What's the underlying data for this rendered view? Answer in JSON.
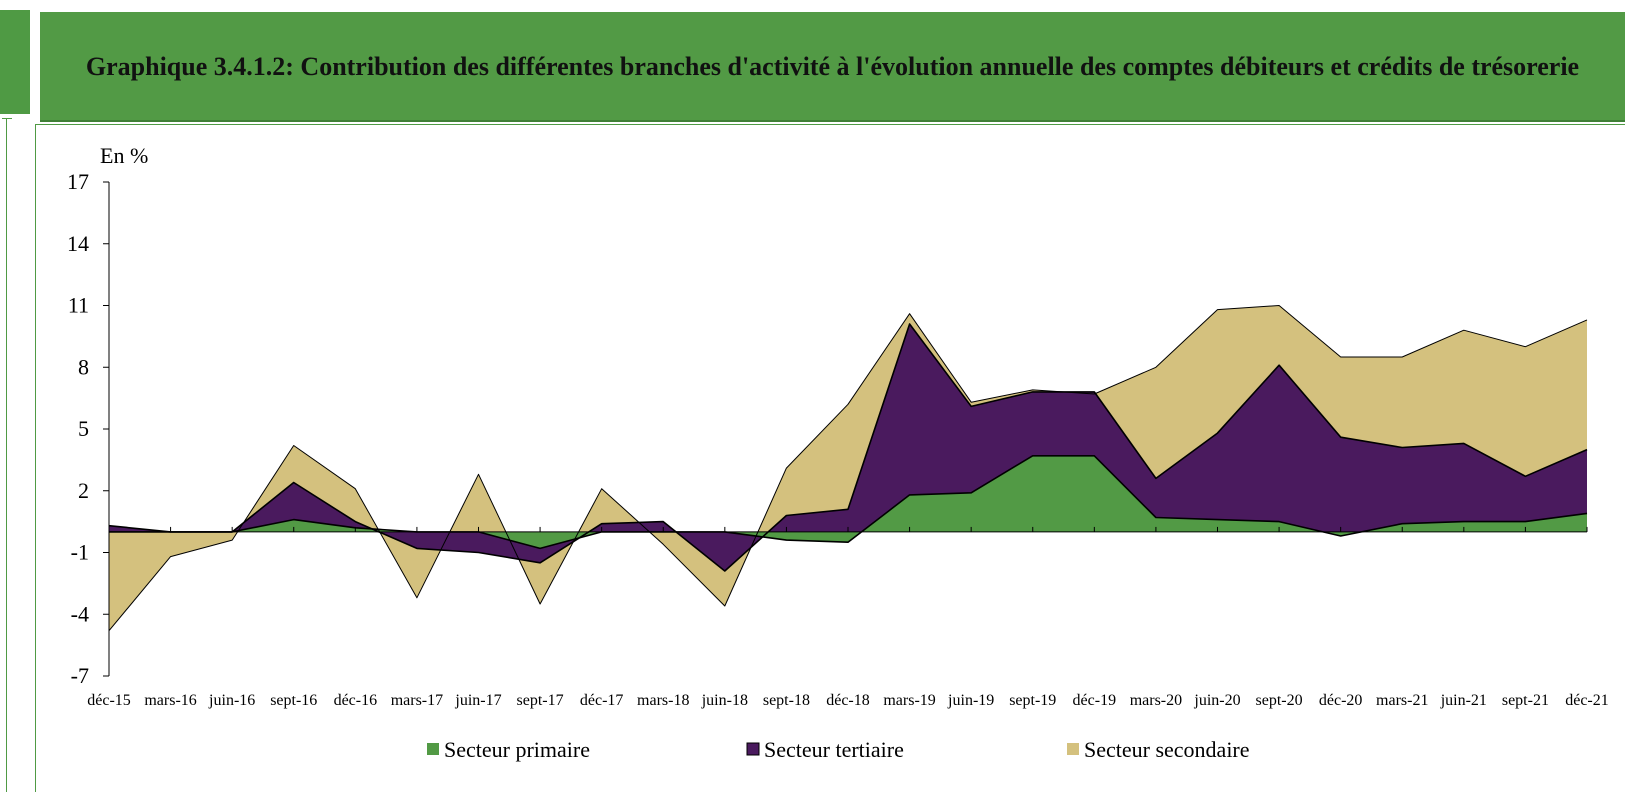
{
  "title": "Graphique 3.4.1.2: Contribution des différentes branches d'activité à l'évolution annuelle des comptes débiteurs et crédits de trésorerie",
  "chart_data": {
    "type": "area",
    "ylabel": "En %",
    "ylim": [
      -7,
      17
    ],
    "yticks": [
      17,
      14,
      11,
      8,
      5,
      2,
      -1,
      -4,
      -7
    ],
    "x": [
      "déc-15",
      "mars-16",
      "juin-16",
      "sept-16",
      "déc-16",
      "mars-17",
      "juin-17",
      "sept-17",
      "déc-17",
      "mars-18",
      "juin-18",
      "sept-18",
      "déc-18",
      "mars-19",
      "juin-19",
      "sept-19",
      "déc-19",
      "mars-20",
      "juin-20",
      "sept-20",
      "déc-20",
      "mars-21",
      "juin-21",
      "sept-21",
      "déc-21"
    ],
    "series": [
      {
        "name": "Secteur primaire",
        "color": "#529a45",
        "values": [
          0.0,
          0.0,
          0.0,
          0.6,
          0.2,
          0.0,
          0.0,
          -0.8,
          0.0,
          0.0,
          0.0,
          -0.4,
          -0.5,
          1.8,
          1.9,
          3.7,
          3.7,
          0.7,
          0.6,
          0.5,
          -0.2,
          0.4,
          0.5,
          0.5,
          0.9
        ]
      },
      {
        "name": "Secteur tertiaire",
        "color": "#4a1a5e",
        "values": [
          0.3,
          0.0,
          0.0,
          2.4,
          0.5,
          -0.8,
          -1.0,
          -1.5,
          0.4,
          0.5,
          -1.9,
          0.8,
          1.1,
          10.1,
          6.1,
          6.8,
          6.8,
          2.6,
          4.8,
          8.1,
          4.6,
          4.1,
          4.3,
          2.7,
          4.0
        ]
      },
      {
        "name": "Secteur secondaire",
        "color": "#d4c17e",
        "values": [
          -4.8,
          -1.2,
          -0.4,
          4.2,
          2.1,
          -3.2,
          2.8,
          -3.5,
          2.1,
          -0.6,
          -3.6,
          3.1,
          6.2,
          10.6,
          6.3,
          6.9,
          6.7,
          8.0,
          10.8,
          11.0,
          8.5,
          8.5,
          9.8,
          9.0,
          10.3
        ]
      }
    ],
    "legend_position": "bottom",
    "grid": false
  }
}
